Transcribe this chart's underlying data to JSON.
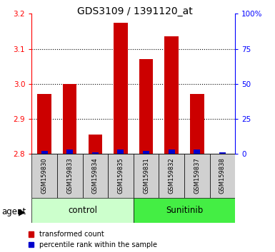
{
  "title": "GDS3109 / 1391120_at",
  "samples": [
    "GSM159830",
    "GSM159833",
    "GSM159834",
    "GSM159835",
    "GSM159831",
    "GSM159832",
    "GSM159837",
    "GSM159838"
  ],
  "transformed_count": [
    2.97,
    3.0,
    2.855,
    3.175,
    3.07,
    3.135,
    2.97,
    2.8
  ],
  "percentile_rank": [
    2,
    3,
    1,
    3,
    2,
    3,
    3,
    1
  ],
  "y_min": 2.8,
  "y_max": 3.2,
  "y_ticks": [
    2.8,
    2.9,
    3.0,
    3.1,
    3.2
  ],
  "right_y_ticks": [
    0,
    25,
    50,
    75,
    100
  ],
  "right_y_tick_labels": [
    "0",
    "25",
    "50",
    "75",
    "100%"
  ],
  "bar_color_red": "#cc0000",
  "bar_color_blue": "#0000cc",
  "control_color": "#ccffcc",
  "sunitinib_color": "#44ee44",
  "legend_red": "transformed count",
  "legend_blue": "percentile rank within the sample",
  "bar_width": 0.55,
  "percentile_bar_width": 0.25
}
